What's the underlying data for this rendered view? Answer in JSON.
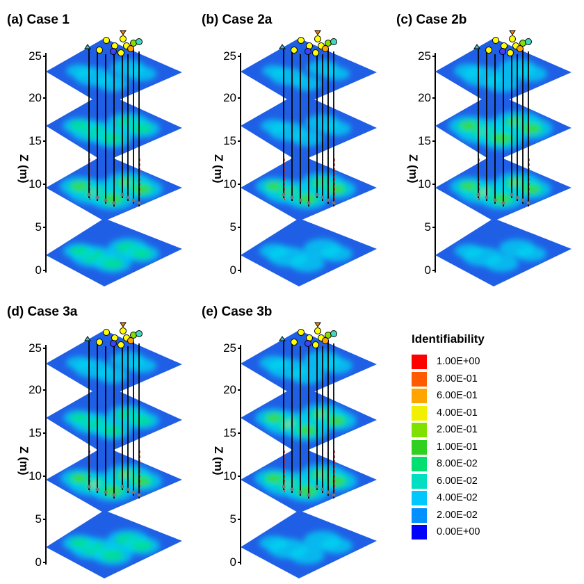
{
  "figure": {
    "panels": [
      {
        "id": "a",
        "title": "(a) Case 1",
        "ylabel": "Z (m)"
      },
      {
        "id": "b",
        "title": "(b) Case 2a",
        "ylabel": "Z (m)"
      },
      {
        "id": "c",
        "title": "(c) Case 2b",
        "ylabel": "Z (m)"
      },
      {
        "id": "d",
        "title": "(d) Case 3a",
        "ylabel": "Z (m)"
      },
      {
        "id": "e",
        "title": "(e) Case 3b",
        "ylabel": "Z (m)"
      }
    ],
    "z_ticks": [
      "25",
      "20",
      "15",
      "10",
      "5",
      "0"
    ],
    "legend": {
      "title": "Identifiability",
      "entries": [
        {
          "label": "1.00E+00",
          "color": "#ff0000"
        },
        {
          "label": "8.00E-01",
          "color": "#ff5a00"
        },
        {
          "label": "6.00E-01",
          "color": "#ffa500"
        },
        {
          "label": "4.00E-01",
          "color": "#f0f000"
        },
        {
          "label": "2.00E-01",
          "color": "#80e000"
        },
        {
          "label": "1.00E-01",
          "color": "#30d020"
        },
        {
          "label": "8.00E-02",
          "color": "#00e070"
        },
        {
          "label": "6.00E-02",
          "color": "#00e0c0"
        },
        {
          "label": "4.00E-02",
          "color": "#00c8ff"
        },
        {
          "label": "2.00E-02",
          "color": "#0090ff"
        },
        {
          "label": "0.00E+00",
          "color": "#0000ff"
        }
      ]
    },
    "colors": {
      "base_blue": "#1f5fe6",
      "low_blue": "#2f78f0",
      "cyan": "#00d4f0",
      "teal": "#00e090",
      "green": "#40d820",
      "yellow": "#e8f000",
      "well_line": "#000000",
      "dashed_line": "#e03030",
      "well_head_fill": "#ffff00",
      "triangle_teal": "#40c0c0",
      "triangle_orange": "#ff8000"
    }
  }
}
